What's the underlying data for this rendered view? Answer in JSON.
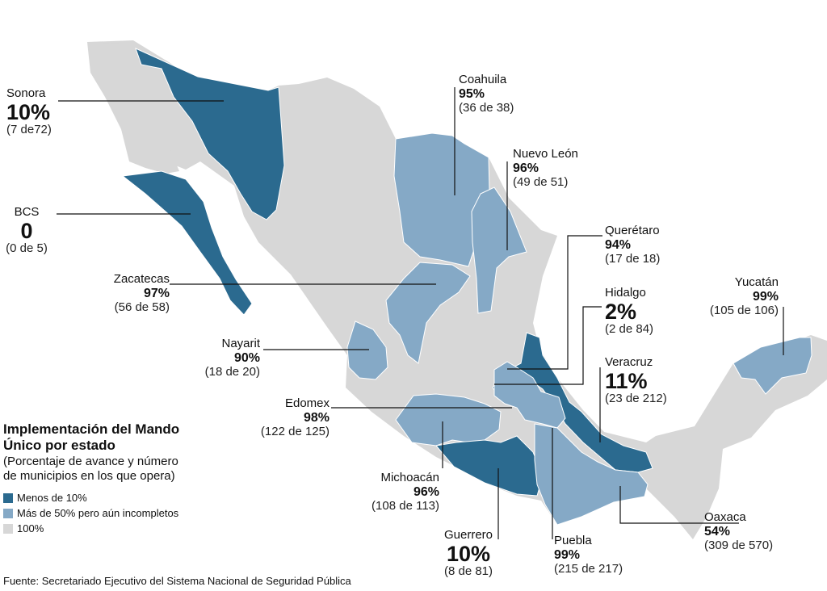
{
  "colors": {
    "low": "#2b6a8f",
    "mid": "#85a9c6",
    "full": "#d7d7d7",
    "leader": "#111111"
  },
  "legend": {
    "title_line1": "Implementación del Mando",
    "title_line2": "Único por estado",
    "subtitle_line1": "(Porcentaje de avance y número",
    "subtitle_line2": "de municipios en los que opera)",
    "items": [
      {
        "label": "Menos de 10%",
        "color": "#2b6a8f"
      },
      {
        "label": "Más de 50% pero aún incompletos",
        "color": "#85a9c6"
      },
      {
        "label": "100%",
        "color": "#d7d7d7"
      }
    ]
  },
  "states": {
    "sonora": {
      "name": "Sonora",
      "pct": "10%",
      "count": "(7 de72)"
    },
    "bcs": {
      "name": "BCS",
      "pct": "0",
      "count": "(0 de 5)"
    },
    "zacatecas": {
      "name": "Zacatecas",
      "pct": "97%",
      "count": "(56 de 58)"
    },
    "nayarit": {
      "name": "Nayarit",
      "pct": "90%",
      "count": "(18 de 20)"
    },
    "edomex": {
      "name": "Edomex",
      "pct": "98%",
      "count": "(122 de 125)"
    },
    "michoacan": {
      "name": "Michoacán",
      "pct": "96%",
      "count": "(108 de 113)"
    },
    "guerrero": {
      "name": "Guerrero",
      "pct": "10%",
      "count": "(8 de 81)"
    },
    "puebla": {
      "name": "Puebla",
      "pct": "99%",
      "count": "(215 de 217)"
    },
    "oaxaca": {
      "name": "Oaxaca",
      "pct": "54%",
      "count": "(309 de 570)"
    },
    "veracruz": {
      "name": "Veracruz",
      "pct": "11%",
      "count": "(23 de 212)"
    },
    "hidalgo": {
      "name": "Hidalgo",
      "pct": "2%",
      "count": "(2 de 84)"
    },
    "queretaro": {
      "name": "Querétaro",
      "pct": "94%",
      "count": "(17 de 18)"
    },
    "nuevo_leon": {
      "name": "Nuevo León",
      "pct": "96%",
      "count": "(49 de 51)"
    },
    "coahuila": {
      "name": "Coahuila",
      "pct": "95%",
      "count": "(36 de 38)"
    },
    "yucatan": {
      "name": "Yucatán",
      "pct": "99%",
      "count": "(105 de 106)"
    }
  },
  "source": "Fuente: Secretariado Ejecutivo del Sistema Nacional de Seguridad Pública"
}
